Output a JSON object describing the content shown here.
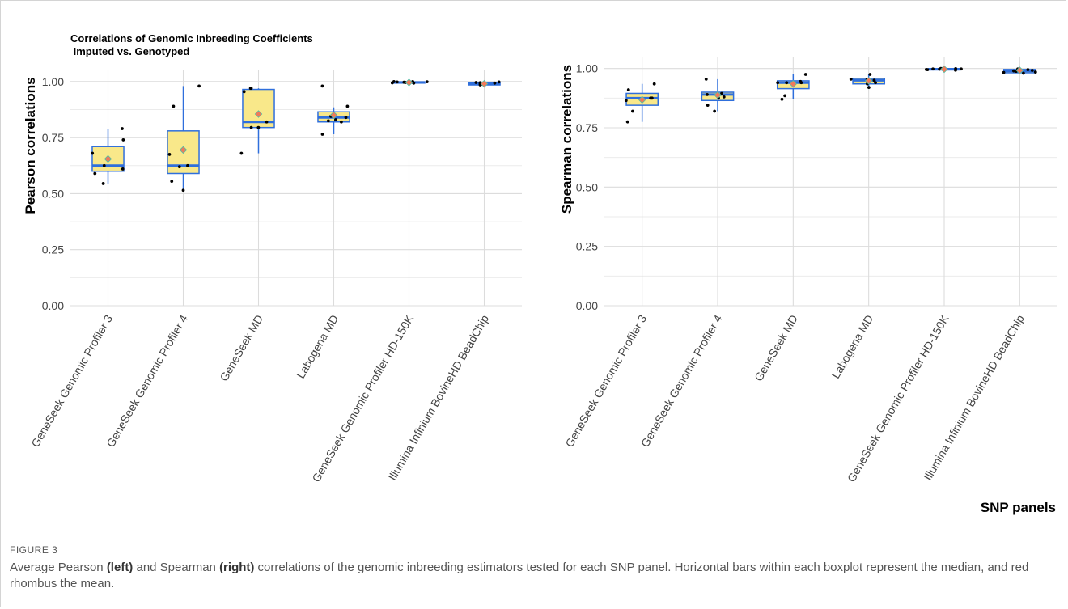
{
  "figure": {
    "label": "FIGURE 3",
    "caption": {
      "p1": "Average Pearson ",
      "b1": "(left)",
      "p2": " and Spearman ",
      "b2": "(right)",
      "p3": " correlations of the genomic inbreeding estimators tested for each SNP panel. Horizontal bars within each boxplot represent the median, and red rhombus the mean."
    }
  },
  "chart_data": [
    {
      "type": "boxplot",
      "title_line1": "Correlations of Genomic Inbreeding Coefficients",
      "title_line2": " Imputed vs. Genotyped",
      "ylabel": "Pearson correlations",
      "xlabel": "",
      "ylim": [
        0,
        1.05
      ],
      "yticks": [
        "0.00",
        "0.25",
        "0.50",
        "0.75",
        "1.00"
      ],
      "grid": true,
      "colors": {
        "box_fill": "#f9e88a",
        "box_line": "#2f6fdc",
        "mean": "#f07a5a",
        "points": "#000000"
      },
      "categories": [
        "GeneSeek Genomic Profiler 3",
        "GeneSeek Genomic Profiler 4",
        "GeneSeek MD",
        "Labogena MD",
        "GeneSeek Genomic Profiler HD-150K",
        "Illumina Infinium BovineHD BeadChip"
      ],
      "boxes": [
        {
          "q1": 0.6,
          "median": 0.625,
          "q3": 0.71,
          "whisker_low": 0.545,
          "whisker_high": 0.79,
          "mean": 0.655
        },
        {
          "q1": 0.59,
          "median": 0.625,
          "q3": 0.78,
          "whisker_low": 0.515,
          "whisker_high": 0.98,
          "mean": 0.695
        },
        {
          "q1": 0.795,
          "median": 0.82,
          "q3": 0.965,
          "whisker_low": 0.68,
          "whisker_high": 0.97,
          "mean": 0.855
        },
        {
          "q1": 0.82,
          "median": 0.84,
          "q3": 0.865,
          "whisker_low": 0.765,
          "whisker_high": 0.885,
          "mean": 0.85
        },
        {
          "q1": 0.993,
          "median": 0.996,
          "q3": 0.999,
          "whisker_low": 0.99,
          "whisker_high": 1.0,
          "mean": 0.996
        },
        {
          "q1": 0.985,
          "median": 0.99,
          "q3": 0.994,
          "whisker_low": 0.985,
          "whisker_high": 0.998,
          "mean": 0.99
        }
      ],
      "points": [
        {
          "cat": 0,
          "values": [
            0.79,
            0.74,
            0.68,
            0.625,
            0.61,
            0.59,
            0.545
          ]
        },
        {
          "cat": 1,
          "values": [
            0.515,
            0.625,
            0.89,
            0.675,
            0.98,
            0.62,
            0.555
          ]
        },
        {
          "cat": 2,
          "values": [
            0.795,
            0.97,
            0.955,
            0.82,
            0.795,
            0.97,
            0.68
          ]
        },
        {
          "cat": 3,
          "values": [
            0.89,
            0.765,
            0.84,
            0.845,
            0.98,
            0.83,
            0.825,
            0.82
          ]
        },
        {
          "cat": 4,
          "values": [
            1.0,
            1.0,
            0.998,
            0.996,
            0.994,
            0.999,
            0.997,
            0.993,
            0.998
          ]
        },
        {
          "cat": 5,
          "values": [
            0.998,
            0.996,
            0.995,
            0.992,
            0.99,
            0.993,
            0.987,
            0.985
          ]
        }
      ]
    },
    {
      "type": "boxplot",
      "title_line1": "",
      "title_line2": "",
      "ylabel": "Spearman correlations",
      "xlabel": "SNP panels",
      "ylim": [
        0,
        1.05
      ],
      "yticks": [
        "0.00",
        "0.25",
        "0.50",
        "0.75",
        "1.00"
      ],
      "grid": true,
      "colors": {
        "box_fill": "#f9e88a",
        "box_line": "#2f6fdc",
        "mean": "#f07a5a",
        "points": "#000000"
      },
      "categories": [
        "GeneSeek Genomic Profiler 3",
        "GeneSeek Genomic Profiler 4",
        "GeneSeek MD",
        "Labogena MD",
        "GeneSeek Genomic Profiler HD-150K",
        "Illumina Infinium BovineHD BeadChip"
      ],
      "boxes": [
        {
          "q1": 0.845,
          "median": 0.875,
          "q3": 0.895,
          "whisker_low": 0.775,
          "whisker_high": 0.935,
          "mean": 0.868
        },
        {
          "q1": 0.865,
          "median": 0.89,
          "q3": 0.9,
          "whisker_low": 0.82,
          "whisker_high": 0.955,
          "mean": 0.888
        },
        {
          "q1": 0.915,
          "median": 0.94,
          "q3": 0.948,
          "whisker_low": 0.87,
          "whisker_high": 0.975,
          "mean": 0.935
        },
        {
          "q1": 0.935,
          "median": 0.95,
          "q3": 0.958,
          "whisker_low": 0.925,
          "whisker_high": 0.975,
          "mean": 0.948
        },
        {
          "q1": 0.995,
          "median": 0.997,
          "q3": 0.999,
          "whisker_low": 0.992,
          "whisker_high": 1.0,
          "mean": 0.997
        },
        {
          "q1": 0.982,
          "median": 0.99,
          "q3": 0.996,
          "whisker_low": 0.98,
          "whisker_high": 1.0,
          "mean": 0.992
        }
      ],
      "points": [
        {
          "cat": 0,
          "values": [
            0.91,
            0.935,
            0.875,
            0.865,
            0.82,
            0.775,
            0.875
          ]
        },
        {
          "cat": 1,
          "values": [
            0.845,
            0.875,
            0.88,
            0.89,
            0.82,
            0.955,
            0.895
          ]
        },
        {
          "cat": 2,
          "values": [
            0.87,
            0.94,
            0.975,
            0.885,
            0.945,
            0.94,
            0.94
          ]
        },
        {
          "cat": 3,
          "values": [
            0.975,
            0.935,
            0.955,
            0.95,
            0.94,
            0.92,
            0.955
          ]
        },
        {
          "cat": 4,
          "values": [
            1.0,
            0.998,
            0.997,
            0.995,
            0.999,
            0.993,
            0.996,
            1.0,
            0.998
          ]
        },
        {
          "cat": 5,
          "values": [
            0.995,
            0.99,
            0.985,
            0.98,
            0.992,
            0.998,
            0.983,
            0.988
          ]
        }
      ]
    }
  ]
}
